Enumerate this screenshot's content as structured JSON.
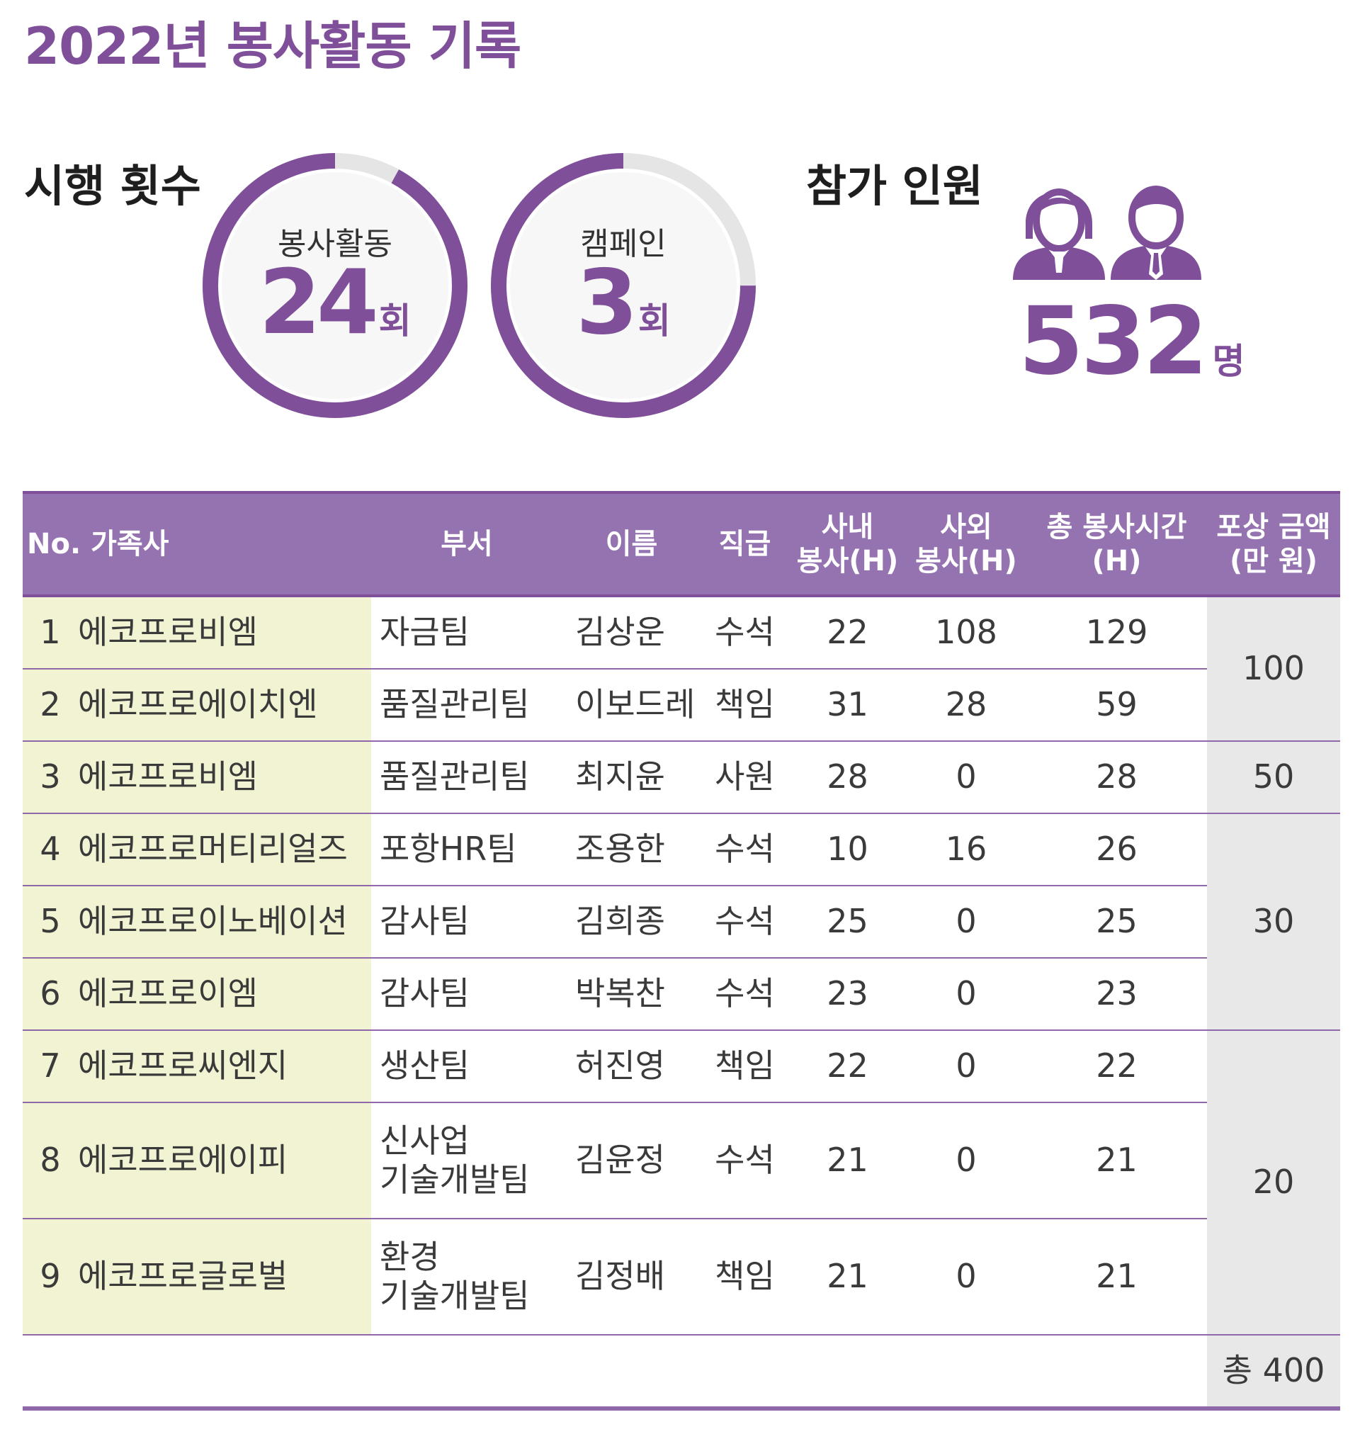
{
  "title": "2022년 봉사활동 기록",
  "execution": {
    "label": "시행 횟수",
    "volunteer": {
      "label": "봉사활동",
      "value": "24",
      "unit": "회",
      "ring_fraction": 0.92
    },
    "campaign": {
      "label": "캠페인",
      "value": "3",
      "unit": "회",
      "ring_fraction": 0.75
    }
  },
  "participants": {
    "label": "참가 인원",
    "value": "532",
    "unit": "명",
    "icon": "people-icon"
  },
  "colors": {
    "accent": "#7f4f99",
    "header_bg": "#9473b0",
    "family_bg": "#f2f3d3",
    "reward_bg": "#e8e8e8",
    "ring_track": "#e5e5e5"
  },
  "table": {
    "headers": {
      "no_company": "No. 가족사",
      "dept": "부서",
      "name": "이름",
      "rank": "직급",
      "internal_1": "사내",
      "internal_2": "봉사(H)",
      "external_1": "사외",
      "external_2": "봉사(H)",
      "total_1": "총 봉사시간",
      "total_2": "(H)",
      "reward_1": "포상 금액",
      "reward_2": "(만 원)"
    },
    "rows": [
      {
        "no": "1",
        "company": "에코프로비엠",
        "dept": "자금팀",
        "dept2": "",
        "name": "김상운",
        "rank": "수석",
        "internal": "22",
        "external": "108",
        "total": "129"
      },
      {
        "no": "2",
        "company": "에코프로에이치엔",
        "dept": "품질관리팀",
        "dept2": "",
        "name": "이보드레",
        "rank": "책임",
        "internal": "31",
        "external": "28",
        "total": "59"
      },
      {
        "no": "3",
        "company": "에코프로비엠",
        "dept": "품질관리팀",
        "dept2": "",
        "name": "최지윤",
        "rank": "사원",
        "internal": "28",
        "external": "0",
        "total": "28"
      },
      {
        "no": "4",
        "company": "에코프로머티리얼즈",
        "dept": "포항HR팀",
        "dept2": "",
        "name": "조용한",
        "rank": "수석",
        "internal": "10",
        "external": "16",
        "total": "26"
      },
      {
        "no": "5",
        "company": "에코프로이노베이션",
        "dept": "감사팀",
        "dept2": "",
        "name": "김희종",
        "rank": "수석",
        "internal": "25",
        "external": "0",
        "total": "25"
      },
      {
        "no": "6",
        "company": "에코프로이엠",
        "dept": "감사팀",
        "dept2": "",
        "name": "박복찬",
        "rank": "수석",
        "internal": "23",
        "external": "0",
        "total": "23"
      },
      {
        "no": "7",
        "company": "에코프로씨엔지",
        "dept": "생산팀",
        "dept2": "",
        "name": "허진영",
        "rank": "책임",
        "internal": "22",
        "external": "0",
        "total": "22"
      },
      {
        "no": "8",
        "company": "에코프로에이피",
        "dept": "신사업",
        "dept2": "기술개발팀",
        "name": "김윤정",
        "rank": "수석",
        "internal": "21",
        "external": "0",
        "total": "21"
      },
      {
        "no": "9",
        "company": "에코프로글로벌",
        "dept": "환경",
        "dept2": "기술개발팀",
        "name": "김정배",
        "rank": "책임",
        "internal": "21",
        "external": "0",
        "total": "21"
      }
    ],
    "rewards": [
      "100",
      "50",
      "30",
      "20"
    ],
    "total_reward": "총 400"
  }
}
